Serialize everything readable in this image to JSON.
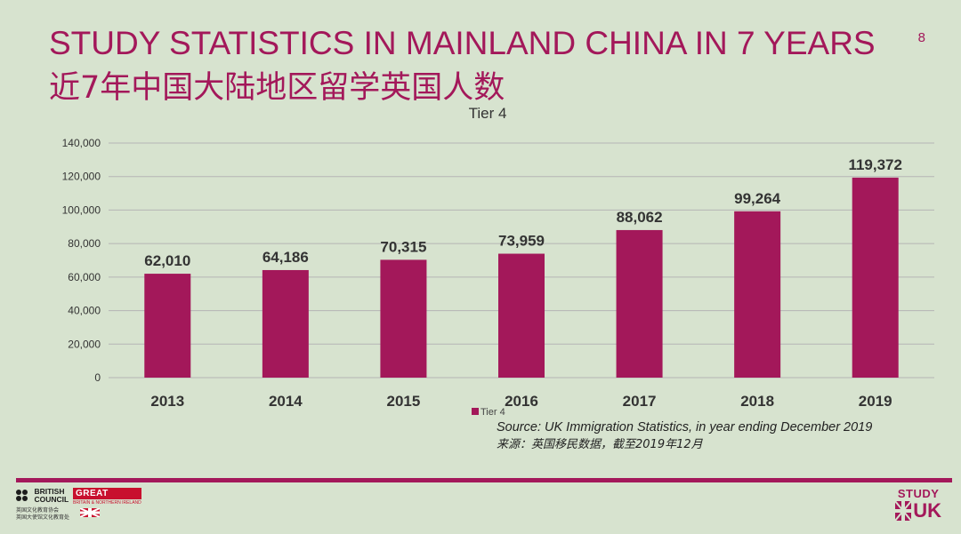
{
  "header": {
    "title_en": "STUDY STATISTICS IN MAINLAND CHINA IN 7 YEARS",
    "title_cn": "近7年中国大陆地区留学英国人数",
    "page_number": "8"
  },
  "chart_data": {
    "type": "bar",
    "title": "Tier 4",
    "categories": [
      "2013",
      "2014",
      "2015",
      "2016",
      "2017",
      "2018",
      "2019"
    ],
    "series": [
      {
        "name": "Tier 4",
        "values": [
          62010,
          64186,
          70315,
          73959,
          88062,
          99264,
          119372
        ]
      }
    ],
    "data_labels": [
      "62,010",
      "64,186",
      "70,315",
      "73,959",
      "88,062",
      "99,264",
      "119,372"
    ],
    "y_ticks": [
      "0",
      "20,000",
      "40,000",
      "60,000",
      "80,000",
      "100,000",
      "120,000",
      "140,000"
    ],
    "ylim": [
      0,
      140000
    ],
    "xlabel": "",
    "ylabel": "",
    "grid": true,
    "legend": "bottom-center",
    "bar_color": "#a3185a",
    "grid_color": "#b5b5b5"
  },
  "source": {
    "line_en": "Source: UK Immigration Statistics, in year ending December 2019",
    "line_cn": "来源：英国移民数据，截至2019年12月"
  },
  "footer": {
    "british_council_line1": "BRITISH",
    "british_council_line2": "COUNCIL",
    "british_council_cn1": "英国文化教育协会",
    "british_council_cn2": "英国大使馆文化教育处",
    "great": "GREAT",
    "great_sub": "BRITAIN & NORTHERN IRELAND",
    "study": "STUDY",
    "uk": "UK"
  },
  "colors": {
    "accent": "#a3185a",
    "background": "#d7e3cf"
  }
}
